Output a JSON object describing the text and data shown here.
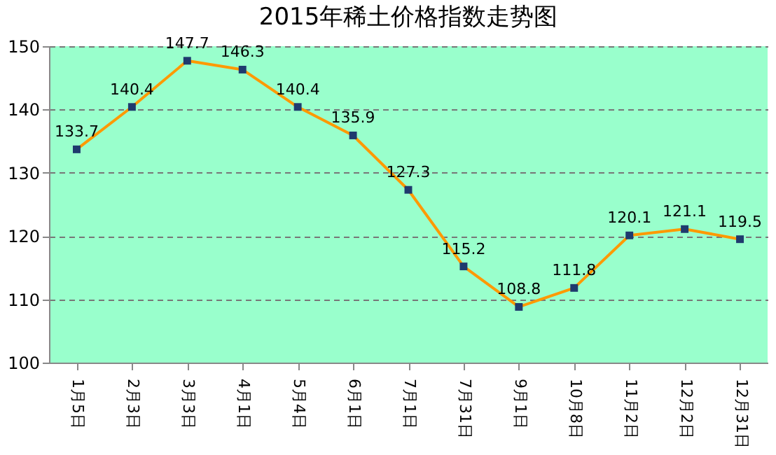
{
  "chart_data": {
    "type": "line",
    "title": "2015年稀土价格指数走势图",
    "categories": [
      "1月5日",
      "2月3日",
      "3月3日",
      "4月1日",
      "5月4日",
      "6月1日",
      "7月1日",
      "7月31日",
      "9月1日",
      "10月8日",
      "11月2日",
      "12月2日",
      "12月31日"
    ],
    "series": [
      {
        "color": "#ff9900",
        "values": [
          133.7,
          140.4,
          147.7,
          146.3,
          140.4,
          135.9,
          127.3,
          115.2,
          108.8,
          111.8,
          120.1,
          121.1,
          119.5
        ]
      }
    ],
    "ylim": [
      100,
      150
    ],
    "yticks": [
      100,
      110,
      120,
      130,
      140,
      150
    ],
    "grid": "y",
    "marker": "square",
    "line_style": "solid",
    "data_labels": true
  }
}
